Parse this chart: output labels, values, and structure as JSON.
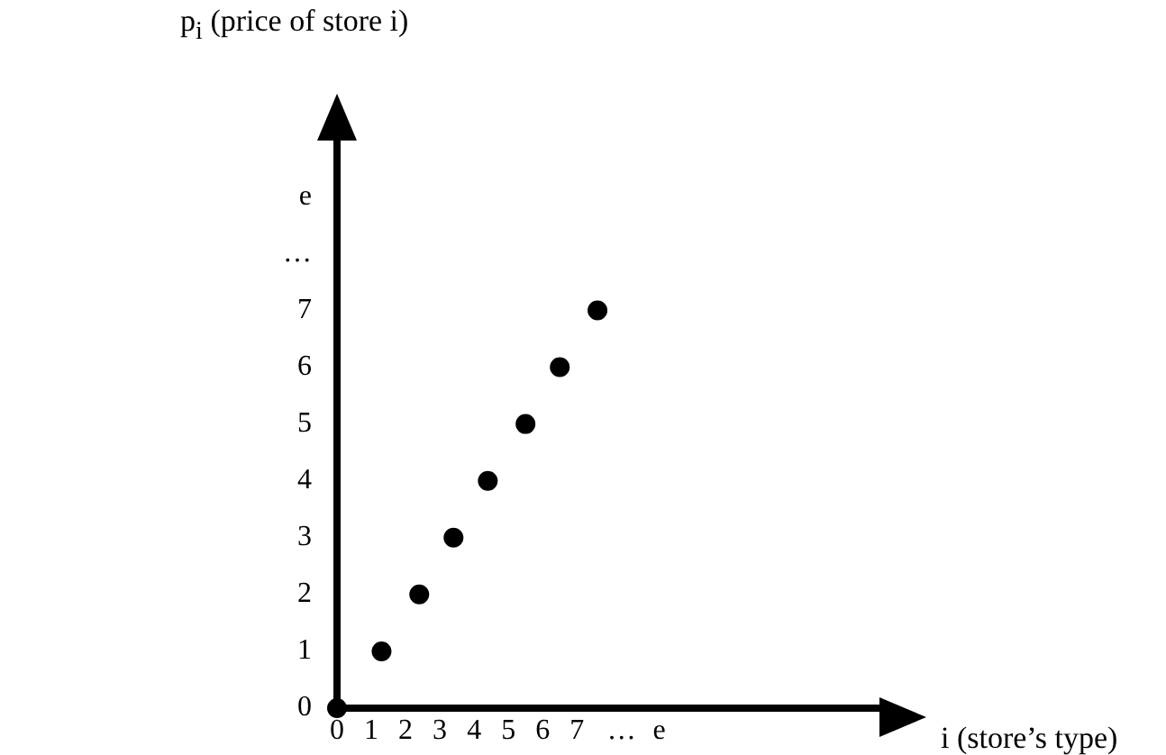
{
  "chart_data": {
    "type": "scatter",
    "xlabel": "i (store’s type)",
    "ylabel": "p$_{i}$ (price of store i)",
    "x": [
      0,
      1.3,
      2.4,
      3.4,
      4.4,
      5.5,
      6.5,
      7.6
    ],
    "values": [
      0,
      1,
      2,
      3,
      4,
      5,
      6,
      7
    ],
    "color": "#000000",
    "marker": "circle",
    "legend": false,
    "grid": false,
    "xlim": [
      0,
      16.3
    ],
    "ylim": [
      0,
      10.4
    ],
    "xticks": [
      0,
      1,
      2,
      3,
      4,
      5,
      6,
      7,
      {
        "value": 8.3,
        "label": "…"
      },
      {
        "value": 9.4,
        "label": "e"
      }
    ],
    "yticks": [
      0,
      1,
      2,
      3,
      4,
      5,
      6,
      7,
      {
        "value": 8,
        "label": "…"
      },
      {
        "value": 9,
        "label": "e"
      }
    ]
  }
}
